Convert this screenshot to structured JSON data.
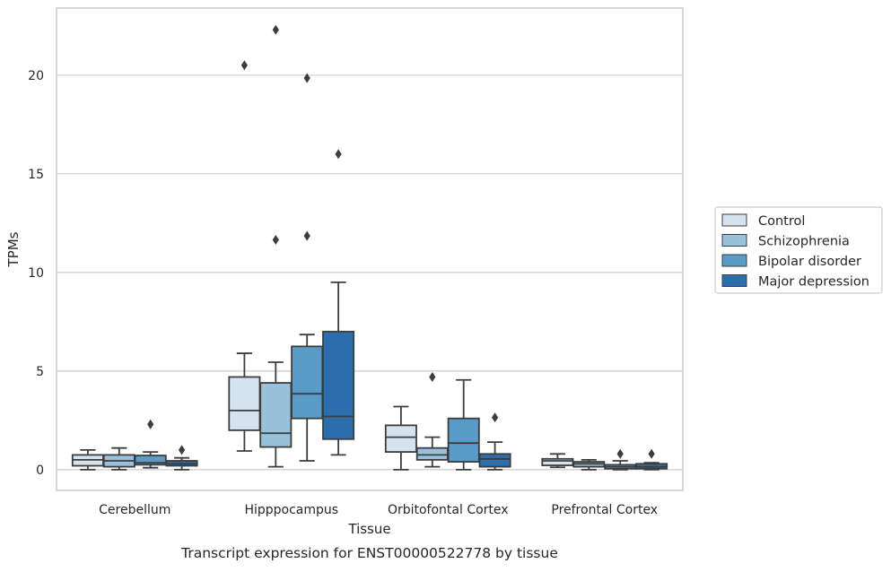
{
  "chart_data": {
    "type": "box",
    "caption": "Transcript expression for ENST00000522778 by tissue",
    "xlabel": "Tissue",
    "ylabel": "TPMs",
    "ylim": [
      -1.05,
      23.4
    ],
    "yticks": [
      0,
      5,
      10,
      15,
      20
    ],
    "grid": "horizontal",
    "legend_placement": "right",
    "categories": [
      "Cerebellum",
      "Hipppocampus",
      "Orbitofontal Cortex",
      "Prefrontal Cortex"
    ],
    "series": [
      {
        "name": "Control",
        "color": "#d5e3f1",
        "boxes": [
          {
            "whisker_low": 0.0,
            "q1": 0.2,
            "median": 0.5,
            "q3": 0.75,
            "whisker_high": 1.0,
            "outliers": []
          },
          {
            "whisker_low": 0.95,
            "q1": 2.0,
            "median": 3.0,
            "q3": 4.7,
            "whisker_high": 5.9,
            "outliers": [
              20.5
            ]
          },
          {
            "whisker_low": 0.0,
            "q1": 0.9,
            "median": 1.65,
            "q3": 2.25,
            "whisker_high": 3.2,
            "outliers": []
          },
          {
            "whisker_low": 0.12,
            "q1": 0.22,
            "median": 0.45,
            "q3": 0.55,
            "whisker_high": 0.8,
            "outliers": []
          }
        ]
      },
      {
        "name": "Schizophrenia",
        "color": "#9ac1dc",
        "boxes": [
          {
            "whisker_low": 0.0,
            "q1": 0.15,
            "median": 0.45,
            "q3": 0.75,
            "whisker_high": 1.1,
            "outliers": []
          },
          {
            "whisker_low": 0.15,
            "q1": 1.15,
            "median": 1.85,
            "q3": 4.4,
            "whisker_high": 5.45,
            "outliers": [
              11.65,
              22.3
            ]
          },
          {
            "whisker_low": 0.15,
            "q1": 0.5,
            "median": 0.75,
            "q3": 1.1,
            "whisker_high": 1.65,
            "outliers": [
              4.7
            ]
          },
          {
            "whisker_low": 0.0,
            "q1": 0.15,
            "median": 0.3,
            "q3": 0.4,
            "whisker_high": 0.5,
            "outliers": []
          }
        ]
      },
      {
        "name": "Bipolar disorder",
        "color": "#5a9bc8",
        "boxes": [
          {
            "whisker_low": 0.1,
            "q1": 0.25,
            "median": 0.35,
            "q3": 0.72,
            "whisker_high": 0.9,
            "outliers": [
              2.3
            ]
          },
          {
            "whisker_low": 0.45,
            "q1": 2.6,
            "median": 3.85,
            "q3": 6.25,
            "whisker_high": 6.85,
            "outliers": [
              11.85,
              19.85
            ]
          },
          {
            "whisker_low": 0.0,
            "q1": 0.4,
            "median": 1.35,
            "q3": 2.6,
            "whisker_high": 4.55,
            "outliers": []
          },
          {
            "whisker_low": 0.0,
            "q1": 0.05,
            "median": 0.15,
            "q3": 0.25,
            "whisker_high": 0.45,
            "outliers": [
              0.8
            ]
          }
        ]
      },
      {
        "name": "Major depression",
        "color": "#2a6ead",
        "boxes": [
          {
            "whisker_low": 0.0,
            "q1": 0.2,
            "median": 0.3,
            "q3": 0.45,
            "whisker_high": 0.6,
            "outliers": [
              1.0
            ]
          },
          {
            "whisker_low": 0.75,
            "q1": 1.55,
            "median": 2.7,
            "q3": 7.0,
            "whisker_high": 9.5,
            "outliers": [
              16.0
            ]
          },
          {
            "whisker_low": 0.0,
            "q1": 0.15,
            "median": 0.55,
            "q3": 0.8,
            "whisker_high": 1.4,
            "outliers": [
              2.65
            ]
          },
          {
            "whisker_low": 0.0,
            "q1": 0.05,
            "median": 0.15,
            "q3": 0.3,
            "whisker_high": 0.35,
            "outliers": [
              0.8
            ]
          }
        ]
      }
    ],
    "colors": {
      "box_edge": "#3d3d3d",
      "grid": "#cccccc",
      "spine": "#cccccc",
      "text": "#262626"
    }
  }
}
